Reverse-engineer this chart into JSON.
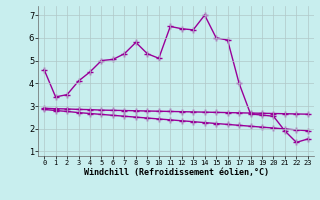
{
  "title": "",
  "xlabel": "Windchill (Refroidissement éolien,°C)",
  "line_color": "#990099",
  "bg_color": "#c8eeee",
  "grid_color": "#b0c8c8",
  "upper_line_x": [
    0,
    1,
    2,
    3,
    4,
    5,
    6,
    7,
    8,
    9,
    10,
    11,
    12,
    13,
    14,
    15,
    16,
    17,
    18,
    19,
    20,
    21,
    22,
    23
  ],
  "upper_line_y": [
    4.6,
    3.4,
    3.5,
    4.1,
    4.5,
    5.0,
    5.05,
    5.3,
    5.8,
    5.3,
    5.1,
    6.5,
    6.4,
    6.35,
    7.0,
    6.0,
    5.9,
    4.0,
    2.65,
    2.6,
    2.55,
    1.9,
    1.4,
    1.55
  ],
  "flat_line_x": [
    0,
    1,
    2,
    3,
    4,
    5,
    6,
    7,
    8,
    9,
    10,
    11,
    12,
    13,
    14,
    15,
    16,
    17,
    18,
    19,
    20,
    21,
    22,
    23
  ],
  "flat_line_y": [
    2.9,
    2.88,
    2.87,
    2.85,
    2.84,
    2.82,
    2.81,
    2.8,
    2.79,
    2.78,
    2.77,
    2.76,
    2.75,
    2.74,
    2.73,
    2.72,
    2.71,
    2.7,
    2.69,
    2.68,
    2.67,
    2.66,
    2.65,
    2.64
  ],
  "lower_line_x": [
    0,
    1,
    2,
    3,
    4,
    5,
    6,
    7,
    8,
    9,
    10,
    11,
    12,
    13,
    14,
    15,
    16,
    17,
    18,
    19,
    20,
    21,
    22,
    23
  ],
  "lower_line_y": [
    2.85,
    2.8,
    2.76,
    2.71,
    2.67,
    2.63,
    2.59,
    2.55,
    2.51,
    2.47,
    2.43,
    2.39,
    2.35,
    2.31,
    2.27,
    2.23,
    2.19,
    2.15,
    2.11,
    2.07,
    2.03,
    1.99,
    1.95,
    1.91
  ],
  "ylim": [
    0.8,
    7.4
  ],
  "xlim": [
    -0.5,
    23.5
  ],
  "yticks": [
    1,
    2,
    3,
    4,
    5,
    6,
    7
  ],
  "xticks": [
    0,
    1,
    2,
    3,
    4,
    5,
    6,
    7,
    8,
    9,
    10,
    11,
    12,
    13,
    14,
    15,
    16,
    17,
    18,
    19,
    20,
    21,
    22,
    23
  ],
  "marker": "+",
  "markersize": 4,
  "linewidth": 1.0
}
